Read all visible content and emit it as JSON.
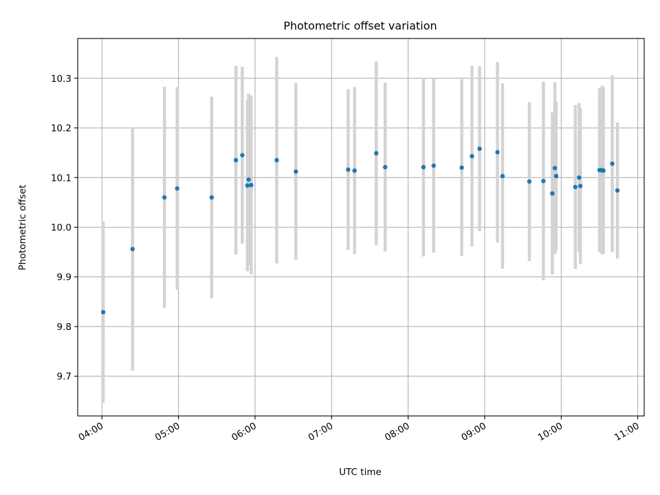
{
  "chart_data": {
    "type": "scatter",
    "title": "Photometric offset variation",
    "xlabel": "UTC time",
    "ylabel": "Photometric offset",
    "x_ticks": [
      "04:00",
      "05:00",
      "06:00",
      "07:00",
      "08:00",
      "09:00",
      "10:00",
      "11:00"
    ],
    "y_ticks": [
      "9.7",
      "9.8",
      "9.9",
      "10.0",
      "10.1",
      "10.2",
      "10.3"
    ],
    "xlim": [
      "03:41",
      "11:05"
    ],
    "ylim": [
      9.62,
      10.38
    ],
    "grid": true,
    "colors": {
      "point": "#1f77b4",
      "errorbar": "#d3d3d3"
    },
    "points": [
      {
        "x": "04:01",
        "y": 9.829,
        "err": 0.183
      },
      {
        "x": "04:24",
        "y": 9.956,
        "err": 0.245
      },
      {
        "x": "04:49",
        "y": 10.06,
        "err": 0.223
      },
      {
        "x": "04:59",
        "y": 10.078,
        "err": 0.204
      },
      {
        "x": "05:26",
        "y": 10.06,
        "err": 0.203
      },
      {
        "x": "05:45",
        "y": 10.135,
        "err": 0.19
      },
      {
        "x": "05:50",
        "y": 10.145,
        "err": 0.178
      },
      {
        "x": "05:54",
        "y": 10.084,
        "err": 0.173
      },
      {
        "x": "05:55",
        "y": 10.096,
        "err": 0.173
      },
      {
        "x": "05:57",
        "y": 10.085,
        "err": 0.18
      },
      {
        "x": "06:17",
        "y": 10.135,
        "err": 0.208
      },
      {
        "x": "06:32",
        "y": 10.112,
        "err": 0.178
      },
      {
        "x": "07:13",
        "y": 10.116,
        "err": 0.162
      },
      {
        "x": "07:18",
        "y": 10.114,
        "err": 0.168
      },
      {
        "x": "07:35",
        "y": 10.149,
        "err": 0.185
      },
      {
        "x": "07:42",
        "y": 10.121,
        "err": 0.17
      },
      {
        "x": "08:12",
        "y": 10.121,
        "err": 0.18
      },
      {
        "x": "08:20",
        "y": 10.124,
        "err": 0.175
      },
      {
        "x": "08:42",
        "y": 10.12,
        "err": 0.178
      },
      {
        "x": "08:50",
        "y": 10.143,
        "err": 0.182
      },
      {
        "x": "08:56",
        "y": 10.158,
        "err": 0.166
      },
      {
        "x": "09:10",
        "y": 10.151,
        "err": 0.182
      },
      {
        "x": "09:14",
        "y": 10.103,
        "err": 0.187
      },
      {
        "x": "09:35",
        "y": 10.092,
        "err": 0.16
      },
      {
        "x": "09:46",
        "y": 10.093,
        "err": 0.2
      },
      {
        "x": "09:53",
        "y": 10.068,
        "err": 0.163
      },
      {
        "x": "09:55",
        "y": 10.119,
        "err": 0.173
      },
      {
        "x": "09:56",
        "y": 10.103,
        "err": 0.15
      },
      {
        "x": "10:11",
        "y": 10.081,
        "err": 0.165
      },
      {
        "x": "10:14",
        "y": 10.1,
        "err": 0.15
      },
      {
        "x": "10:15",
        "y": 10.083,
        "err": 0.157
      },
      {
        "x": "10:30",
        "y": 10.115,
        "err": 0.165
      },
      {
        "x": "10:31",
        "y": 10.115,
        "err": 0.165
      },
      {
        "x": "10:32",
        "y": 10.115,
        "err": 0.17
      },
      {
        "x": "10:33",
        "y": 10.114,
        "err": 0.168
      },
      {
        "x": "10:40",
        "y": 10.128,
        "err": 0.178
      },
      {
        "x": "10:44",
        "y": 10.074,
        "err": 0.137
      }
    ]
  }
}
